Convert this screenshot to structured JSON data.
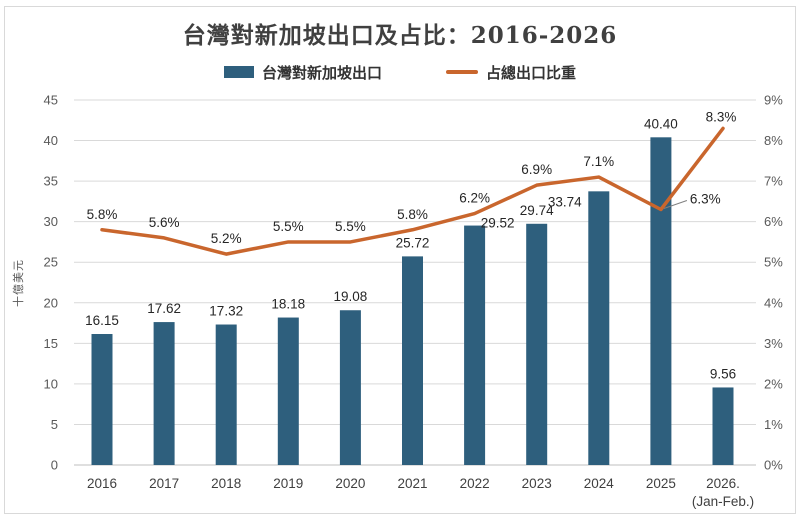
{
  "title": "台灣對新加坡出口及占比：2016-2026",
  "legend": [
    {
      "label": "台灣對新加坡出口",
      "swatch": "bar",
      "color": "#2E5F7D"
    },
    {
      "label": "占總出口比重",
      "swatch": "line",
      "color": "#C9662D"
    }
  ],
  "chart_data": {
    "type": "combo",
    "categories": [
      "2016",
      "2017",
      "2018",
      "2019",
      "2020",
      "2021",
      "2022",
      "2023",
      "2024",
      "2025",
      "2026.\n(Jan-Feb.)"
    ],
    "series": [
      {
        "name": "台灣對新加坡出口",
        "type": "bar",
        "axis": "left",
        "color": "#2E5F7D",
        "values": [
          16.15,
          17.62,
          17.32,
          18.18,
          19.08,
          25.72,
          29.52,
          29.74,
          33.74,
          40.4,
          9.56
        ]
      },
      {
        "name": "占總出口比重",
        "type": "line",
        "axis": "right",
        "color": "#C9662D",
        "unit": "%",
        "values": [
          5.8,
          5.6,
          5.2,
          5.5,
          5.5,
          5.8,
          6.2,
          6.9,
          7.1,
          6.3,
          8.3
        ]
      }
    ],
    "left_axis": {
      "label": "十億美元",
      "min": 0,
      "max": 45,
      "step": 5
    },
    "right_axis": {
      "min": 0,
      "max": 9,
      "step": 1,
      "suffix": "%"
    },
    "grid": true,
    "legend_position": "top",
    "colors": {
      "grid": "#D9D9D9",
      "baseline": "#BFBFBF",
      "tick_text": "#595959",
      "label_text": "#262626",
      "leader": "#7F7F7F",
      "frame": "#D9D9D9"
    },
    "layout_hints": {
      "bar_label_offsets": {
        "6": {
          "dx": 23,
          "dy": 11
        },
        "8": {
          "dx": -34,
          "dy": 24
        }
      },
      "line_label_offsets": {
        "9": {
          "dx": 29,
          "dy": 5,
          "anchor": "start",
          "leader": true
        },
        "10": {
          "dx": -2,
          "dy": 4
        }
      }
    }
  }
}
